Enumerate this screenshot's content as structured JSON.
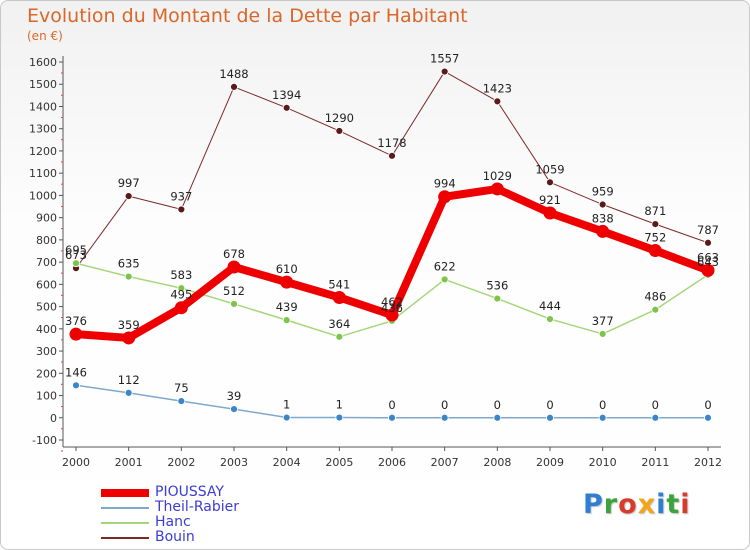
{
  "title": "Evolution du Montant de la Dette par Habitant",
  "subtitle": "(en €)",
  "logo": {
    "text": "Proxiti",
    "colors": [
      "#2f7fd1",
      "#3aa33a",
      "#d83b2b",
      "#f2a51a",
      "#2f7fd1",
      "#3aa33a",
      "#d83b2b"
    ]
  },
  "chart_data": {
    "type": "line",
    "categories": [
      "2000",
      "2001",
      "2002",
      "2003",
      "2004",
      "2005",
      "2006",
      "2007",
      "2008",
      "2009",
      "2010",
      "2011",
      "2012"
    ],
    "ylim": [
      -100,
      1600
    ],
    "yticks": [
      "-100",
      "0",
      "100",
      "200",
      "300",
      "400",
      "500",
      "600",
      "700",
      "800",
      "900",
      "1000",
      "1100",
      "1200",
      "1300",
      "1400",
      "1500",
      "1600"
    ],
    "grid": false,
    "legend_position": "bottom-left",
    "series": [
      {
        "name": "Bouin",
        "color": "#7a2a2a",
        "marker": "#5a1a1a",
        "width": 1,
        "values": [
          673,
          997,
          937,
          1488,
          1394,
          1290,
          1178,
          1557,
          1423,
          1059,
          959,
          871,
          787
        ],
        "labels": [
          "673",
          "997",
          "937",
          "1488",
          "1394",
          "1290",
          "1178",
          "1557",
          "1423",
          "1059",
          "959",
          "871",
          "787"
        ]
      },
      {
        "name": "Hanc",
        "color": "#a6d67a",
        "marker": "#7cc44a",
        "width": 1.5,
        "values": [
          695,
          635,
          583,
          512,
          439,
          364,
          436,
          622,
          536,
          444,
          377,
          486,
          643
        ],
        "labels": [
          "695",
          "635",
          "583",
          "512",
          "439",
          "364",
          "436",
          "622",
          "536",
          "444",
          "377",
          "486",
          "643"
        ]
      },
      {
        "name": "Theil-Rabier",
        "color": "#7fa8cc",
        "marker": "#3a86c8",
        "width": 1.5,
        "values": [
          146,
          112,
          75,
          39,
          1,
          1,
          0,
          0,
          0,
          0,
          0,
          0,
          0
        ],
        "labels": [
          "146",
          "112",
          "75",
          "39",
          "1",
          "1",
          "0",
          "0",
          "0",
          "0",
          "0",
          "0",
          "0"
        ]
      },
      {
        "name": "PIOUSSAY",
        "color": "#ee0000",
        "marker": "#ee0000",
        "width": 8,
        "values": [
          376,
          359,
          495,
          678,
          610,
          541,
          462,
          994,
          1029,
          921,
          838,
          752,
          663
        ],
        "labels": [
          "376",
          "359",
          "495",
          "678",
          "610",
          "541",
          "462",
          "994",
          "1029",
          "921",
          "838",
          "752",
          "663"
        ]
      }
    ]
  },
  "legend": [
    {
      "name": "PIOUSSAY",
      "color": "#ee0000",
      "height": 8
    },
    {
      "name": "Theil-Rabier",
      "color": "#7fa8cc",
      "height": 2
    },
    {
      "name": "Hanc",
      "color": "#a6d67a",
      "height": 2
    },
    {
      "name": "Bouin",
      "color": "#7a2a2a",
      "height": 2
    }
  ]
}
